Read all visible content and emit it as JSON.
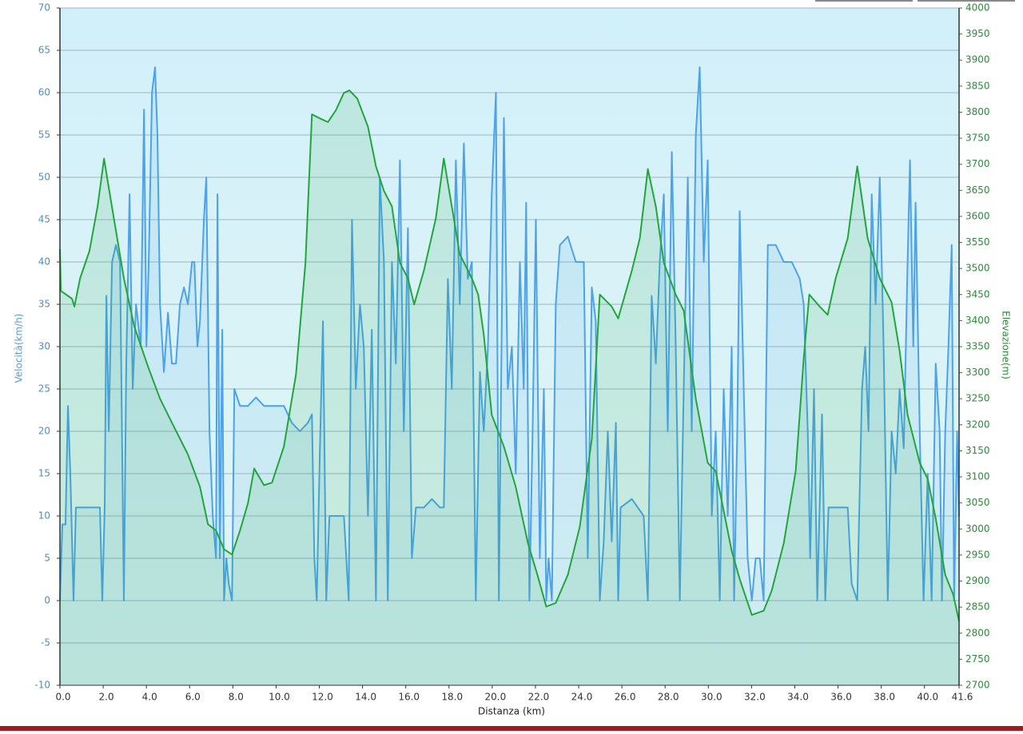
{
  "chart_data": {
    "type": "line",
    "x_label": "Distanza  (km)",
    "y_label": "Velocità(km/h)",
    "y2_label": "Elevazione(m)",
    "xlim": [
      0,
      41.6
    ],
    "ylim": [
      -10,
      70
    ],
    "y2lim": [
      2700,
      4000
    ],
    "grid": true,
    "xticks": [
      {
        "value": 0,
        "label": "0.0"
      },
      {
        "value": 2,
        "label": "2.0"
      },
      {
        "value": 4,
        "label": "4.0"
      },
      {
        "value": 6,
        "label": "6.0"
      },
      {
        "value": 8,
        "label": "8.0"
      },
      {
        "value": 10,
        "label": "10.0"
      },
      {
        "value": 12,
        "label": "12.0"
      },
      {
        "value": 14,
        "label": "14.0"
      },
      {
        "value": 16,
        "label": "16.0"
      },
      {
        "value": 18,
        "label": "18.0"
      },
      {
        "value": 20,
        "label": "20.0"
      },
      {
        "value": 22,
        "label": "22.0"
      },
      {
        "value": 24,
        "label": "24.0"
      },
      {
        "value": 26,
        "label": "26.0"
      },
      {
        "value": 28,
        "label": "28.0"
      },
      {
        "value": 30,
        "label": "30.0"
      },
      {
        "value": 32,
        "label": "32.0"
      },
      {
        "value": 34,
        "label": "34.0"
      },
      {
        "value": 36,
        "label": "36.0"
      },
      {
        "value": 38,
        "label": "38.0"
      },
      {
        "value": 40,
        "label": "40.0"
      },
      41.6
    ],
    "yticks": [
      -10,
      -5,
      0,
      5,
      10,
      15,
      20,
      25,
      30,
      35,
      40,
      45,
      50,
      55,
      60,
      65,
      70
    ],
    "y2ticks": [
      2700,
      2750,
      2800,
      2850,
      2900,
      2950,
      3000,
      3050,
      3100,
      3150,
      3200,
      3250,
      3300,
      3350,
      3400,
      3450,
      3500,
      3550,
      3600,
      3650,
      3700,
      3750,
      3800,
      3850,
      3900,
      3950,
      4000
    ],
    "series": [
      {
        "color": "#4da2e8",
        "x": [
          0,
          0.11,
          0.26,
          0.37,
          0.48,
          0.63,
          0.74,
          1.11,
          1.48,
          1.85,
          1.96,
          2.07,
          2.15,
          2.26,
          2.41,
          2.59,
          2.78,
          2.96,
          3.07,
          3.22,
          3.37,
          3.52,
          3.74,
          3.89,
          4.0,
          4.11,
          4.26,
          4.4,
          4.51,
          4.63,
          4.81,
          5.0,
          5.18,
          5.37,
          5.55,
          5.74,
          5.92,
          6.11,
          6.22,
          6.36,
          6.48,
          6.66,
          6.77,
          6.92,
          7.07,
          7.22,
          7.29,
          7.4,
          7.51,
          7.59,
          7.7,
          7.81,
          7.96,
          8.07,
          8.33,
          8.7,
          9.07,
          9.44,
          9.81,
          10.36,
          10.73,
          11.1,
          11.47,
          11.66,
          11.77,
          11.88,
          12.03,
          12.17,
          12.32,
          12.47,
          12.77,
          13.14,
          13.36,
          13.51,
          13.69,
          13.88,
          14.06,
          14.25,
          14.43,
          14.62,
          14.8,
          14.99,
          15.17,
          15.36,
          15.54,
          15.73,
          15.91,
          16.1,
          16.28,
          16.47,
          16.84,
          17.21,
          17.58,
          17.76,
          17.95,
          18.13,
          18.32,
          18.5,
          18.69,
          18.87,
          19.06,
          19.24,
          19.43,
          19.61,
          19.8,
          19.98,
          20.17,
          20.31,
          20.54,
          20.72,
          20.91,
          21.09,
          21.28,
          21.46,
          21.57,
          21.72,
          21.87,
          22.02,
          22.2,
          22.39,
          22.5,
          22.61,
          22.76,
          22.94,
          23.13,
          23.5,
          23.87,
          24.24,
          24.42,
          24.61,
          24.79,
          24.98,
          25.16,
          25.35,
          25.53,
          25.72,
          25.83,
          25.94,
          26.46,
          27.01,
          27.2,
          27.38,
          27.57,
          27.75,
          27.94,
          28.12,
          28.31,
          28.49,
          28.68,
          28.86,
          29.05,
          29.23,
          29.42,
          29.6,
          29.79,
          29.97,
          30.16,
          30.34,
          30.53,
          30.71,
          30.9,
          31.08,
          31.19,
          31.34,
          31.45,
          31.64,
          31.82,
          32.01,
          32.19,
          32.38,
          32.56,
          32.75,
          33.12,
          33.49,
          33.86,
          34.23,
          34.41,
          34.6,
          34.71,
          34.89,
          35.04,
          35.26,
          35.41,
          35.56,
          36.08,
          36.45,
          36.63,
          36.89,
          37.11,
          37.26,
          37.41,
          37.56,
          37.74,
          37.93,
          38.11,
          38.3,
          38.48,
          38.67,
          38.85,
          39.04,
          39.22,
          39.33,
          39.48,
          39.59,
          39.78,
          39.96,
          40.15,
          40.33,
          40.52,
          40.7,
          40.81,
          40.96,
          41.11,
          41.26,
          41.37,
          41.51,
          41.6
        ],
        "values": [
          0,
          9,
          9,
          23,
          15,
          0,
          11,
          11,
          11,
          11,
          0,
          11,
          36,
          20,
          40,
          42,
          40,
          0,
          28,
          48,
          25,
          35,
          30,
          58,
          30,
          40,
          60,
          63,
          55,
          35,
          27,
          34,
          28,
          28,
          35,
          37,
          35,
          40,
          40,
          30,
          33,
          45,
          50,
          20,
          10,
          5,
          48,
          5,
          32,
          0,
          5,
          2,
          0,
          25,
          23,
          23,
          24,
          23,
          23,
          23,
          21,
          20,
          21,
          22,
          5,
          0,
          18,
          33,
          0,
          10,
          10,
          10,
          0,
          45,
          25,
          35,
          30,
          10,
          32,
          0,
          50,
          40,
          0,
          40,
          28,
          52,
          20,
          44,
          5,
          11,
          11,
          12,
          11,
          11,
          38,
          25,
          52,
          35,
          54,
          38,
          40,
          0,
          27,
          20,
          30,
          48,
          60,
          0,
          57,
          25,
          30,
          15,
          40,
          25,
          47,
          0,
          20,
          45,
          5,
          25,
          0,
          5,
          0,
          35,
          42,
          43,
          40,
          40,
          5,
          37,
          33,
          0,
          7,
          20,
          7,
          21,
          0,
          11,
          12,
          10,
          0,
          36,
          28,
          40,
          48,
          20,
          53,
          30,
          0,
          25,
          50,
          20,
          55,
          63,
          40,
          52,
          10,
          20,
          0,
          25,
          10,
          30,
          0,
          20,
          46,
          25,
          5,
          0,
          5,
          5,
          0,
          42,
          42,
          40,
          40,
          38,
          35,
          20,
          5,
          25,
          0,
          22,
          0,
          11,
          11,
          11,
          2,
          0,
          25,
          30,
          20,
          48,
          35,
          50,
          30,
          0,
          20,
          15,
          25,
          18,
          40,
          52,
          30,
          47,
          20,
          0,
          15,
          0,
          28,
          20,
          0,
          20,
          30,
          42,
          0,
          20,
          10
        ]
      },
      {
        "color": "#22a63c",
        "axis": "y2",
        "x": [
          0,
          0.04,
          0.56,
          0.67,
          0.93,
          1.37,
          1.74,
          2.04,
          2.22,
          2.59,
          2.96,
          3.44,
          4.07,
          4.63,
          5.18,
          5.92,
          6.48,
          6.85,
          7.22,
          7.59,
          7.96,
          8.33,
          8.7,
          8.99,
          9.44,
          9.81,
          10.36,
          10.92,
          11.36,
          11.66,
          12.03,
          12.4,
          12.77,
          13.14,
          13.39,
          13.76,
          14.25,
          14.62,
          14.99,
          15.36,
          15.73,
          16.1,
          16.39,
          16.84,
          17.39,
          17.76,
          18.13,
          18.5,
          19.06,
          19.35,
          19.61,
          19.98,
          20.54,
          21.09,
          21.65,
          22.09,
          22.5,
          22.94,
          23.5,
          24.05,
          24.61,
          24.98,
          25.53,
          25.83,
          26.46,
          26.83,
          27.2,
          27.57,
          27.94,
          28.49,
          28.86,
          29.42,
          29.97,
          30.34,
          30.71,
          31.08,
          31.45,
          32.01,
          32.56,
          32.93,
          33.49,
          34.04,
          34.41,
          34.67,
          35.15,
          35.52,
          35.89,
          36.45,
          36.89,
          37.37,
          37.93,
          38.48,
          38.85,
          39.22,
          39.78,
          40.15,
          40.52,
          40.96,
          41.33,
          41.6
        ],
        "values": [
          3537,
          3457,
          3442,
          3427,
          3481,
          3534,
          3619,
          3711,
          3665,
          3573,
          3481,
          3389,
          3312,
          3250,
          3204,
          3143,
          3081,
          3009,
          2997,
          2961,
          2951,
          2997,
          3050,
          3116,
          3084,
          3089,
          3158,
          3296,
          3511,
          3796,
          3788,
          3781,
          3804,
          3837,
          3842,
          3826,
          3772,
          3696,
          3649,
          3619,
          3511,
          3481,
          3431,
          3496,
          3596,
          3711,
          3619,
          3527,
          3481,
          3450,
          3373,
          3219,
          3158,
          3081,
          2973,
          2912,
          2851,
          2858,
          2912,
          3004,
          3173,
          3450,
          3427,
          3404,
          3496,
          3558,
          3691,
          3619,
          3511,
          3450,
          3419,
          3250,
          3127,
          3111,
          3035,
          2958,
          2904,
          2835,
          2843,
          2881,
          2973,
          3111,
          3327,
          3450,
          3427,
          3411,
          3481,
          3558,
          3696,
          3558,
          3481,
          3435,
          3342,
          3219,
          3127,
          3096,
          3020,
          2912,
          2874,
          2823
        ]
      }
    ]
  }
}
